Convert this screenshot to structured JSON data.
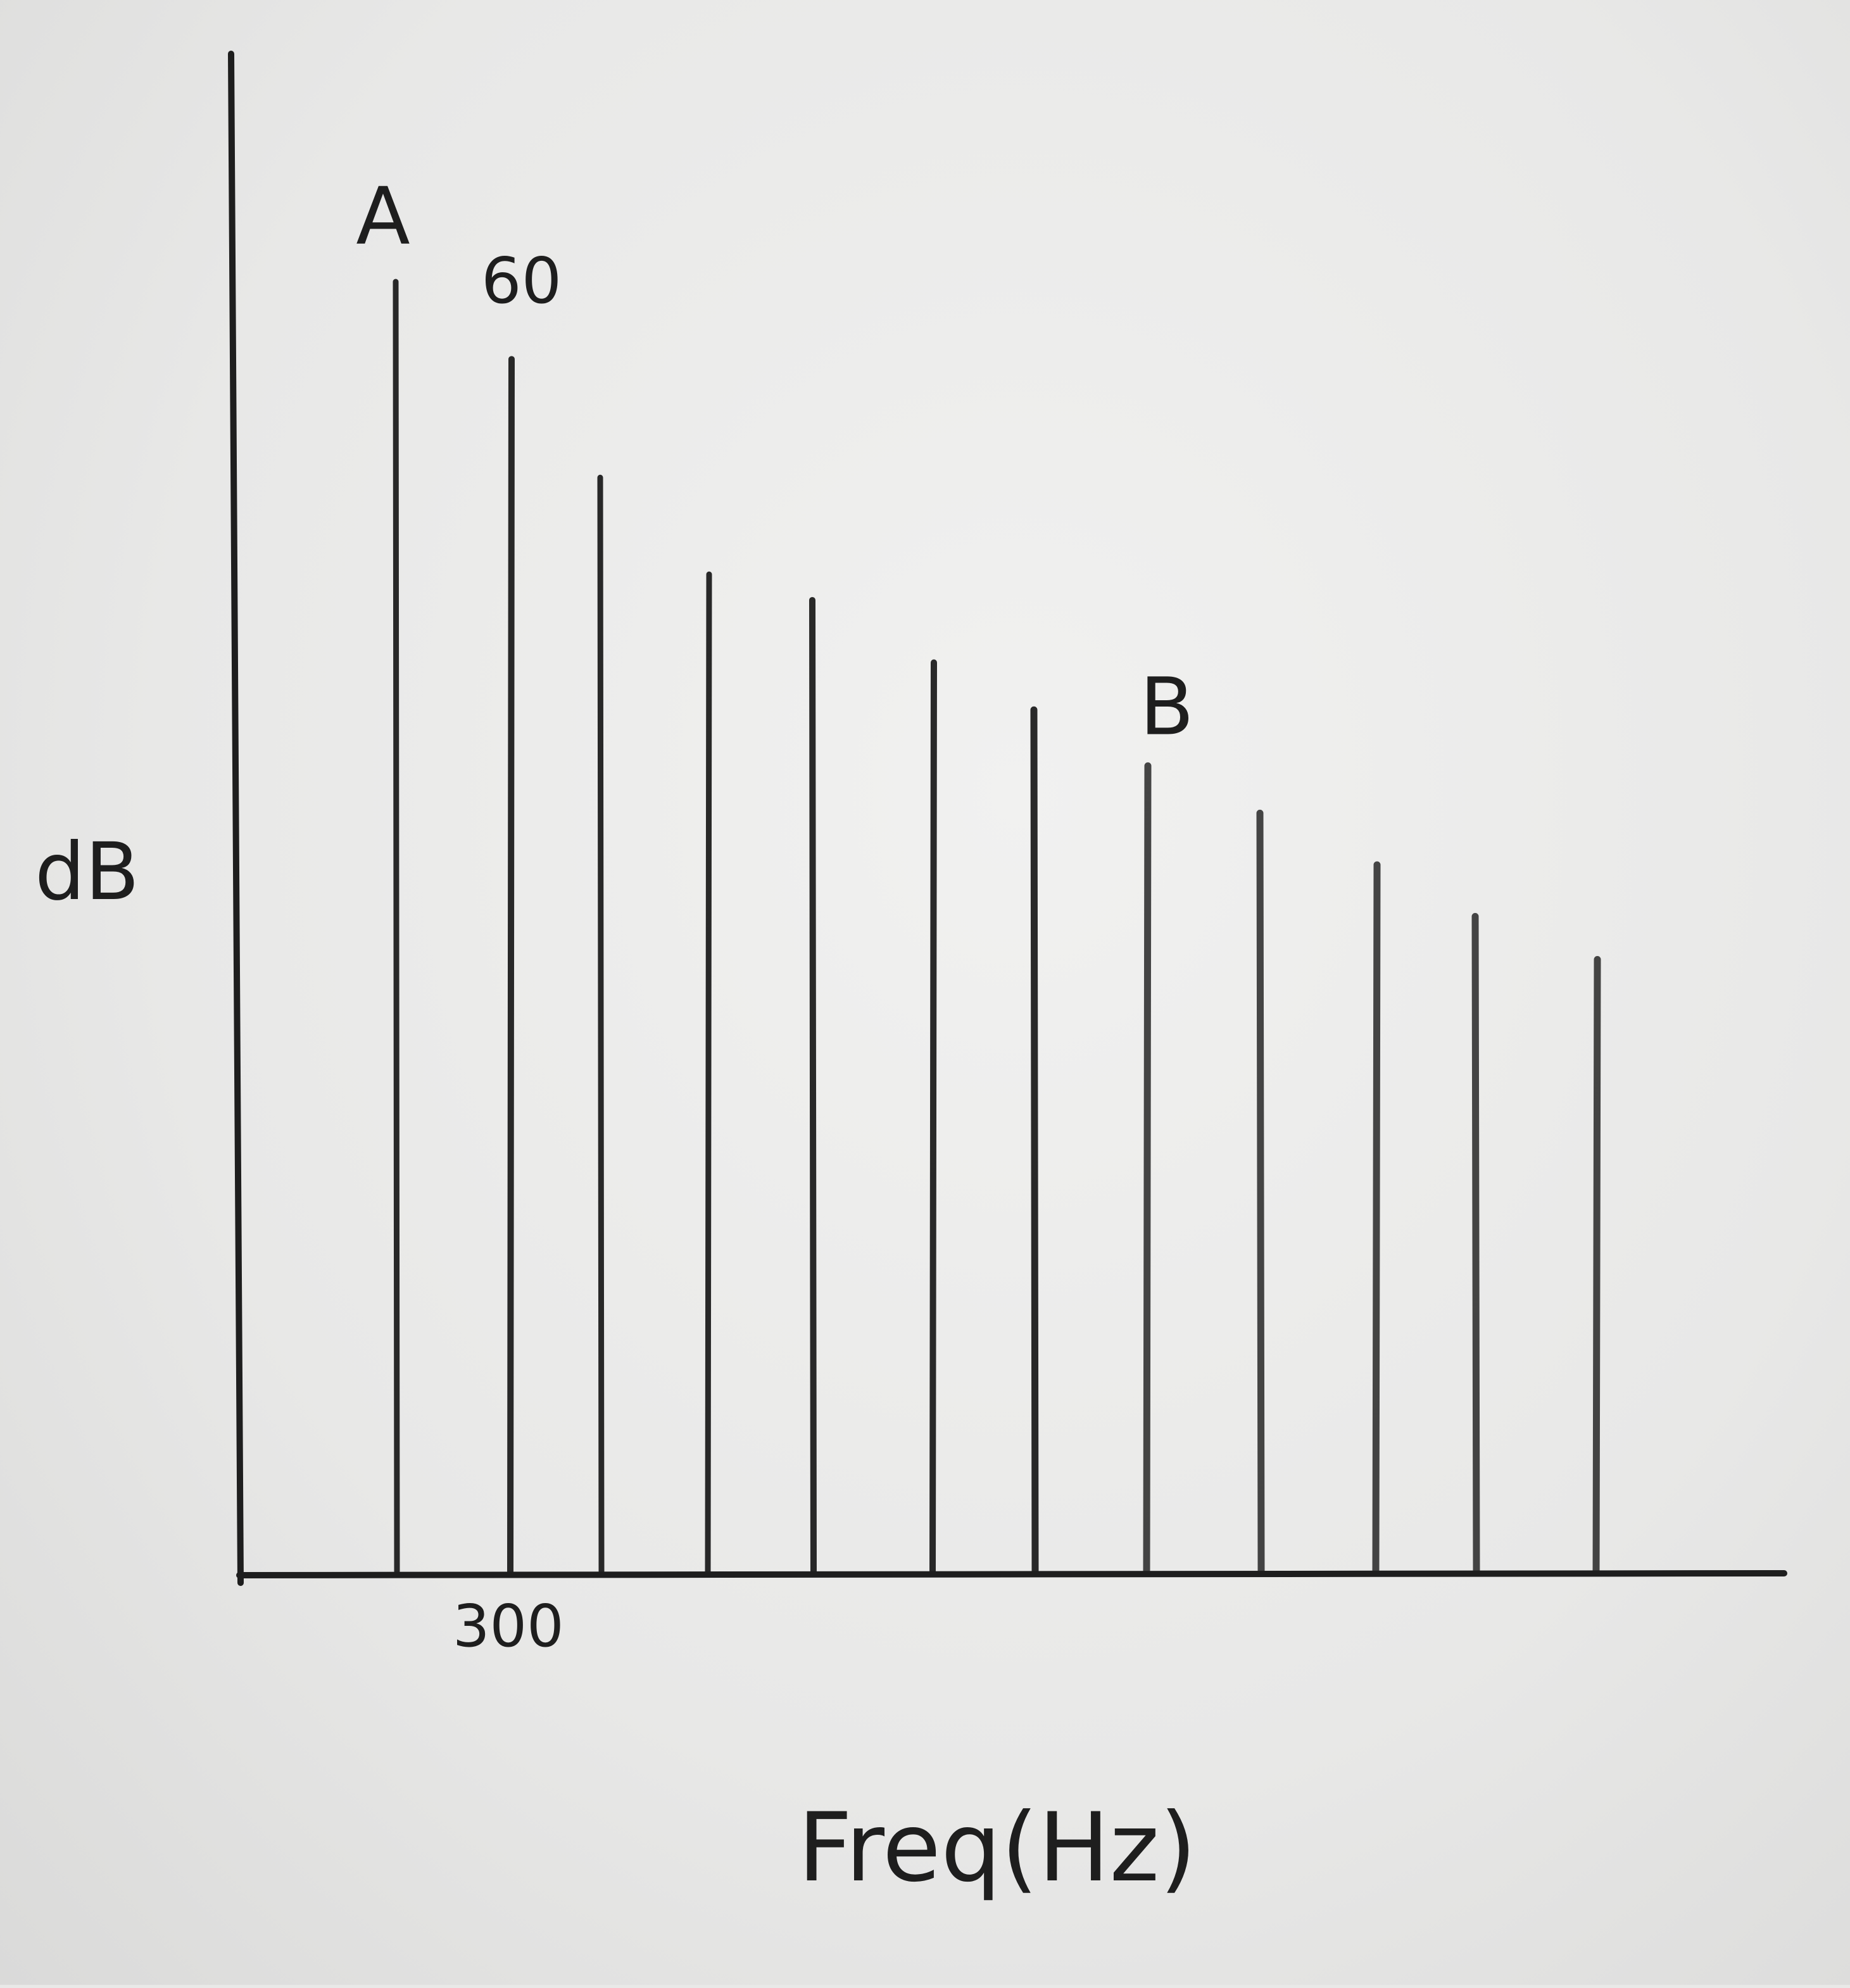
{
  "chart_data": {
    "type": "bar",
    "title": "",
    "xlabel": "Freq(Hz)",
    "ylabel": "dB",
    "ylim": [
      0,
      70
    ],
    "grid": false,
    "legend": "none",
    "ytick_label": "60",
    "xtick_label": "300",
    "series": [
      {
        "values": [
          60.0,
          56.4,
          50.9,
          46.4,
          45.2,
          42.3,
          40.1,
          37.5,
          35.3,
          32.9,
          30.5,
          28.5
        ]
      }
    ],
    "annotations": [
      {
        "text": "A",
        "bar_index": 0
      },
      {
        "text": "B",
        "bar_index": 7
      }
    ],
    "colors": {
      "ink": "#1e1e1e",
      "paper": "#ebebea"
    }
  }
}
